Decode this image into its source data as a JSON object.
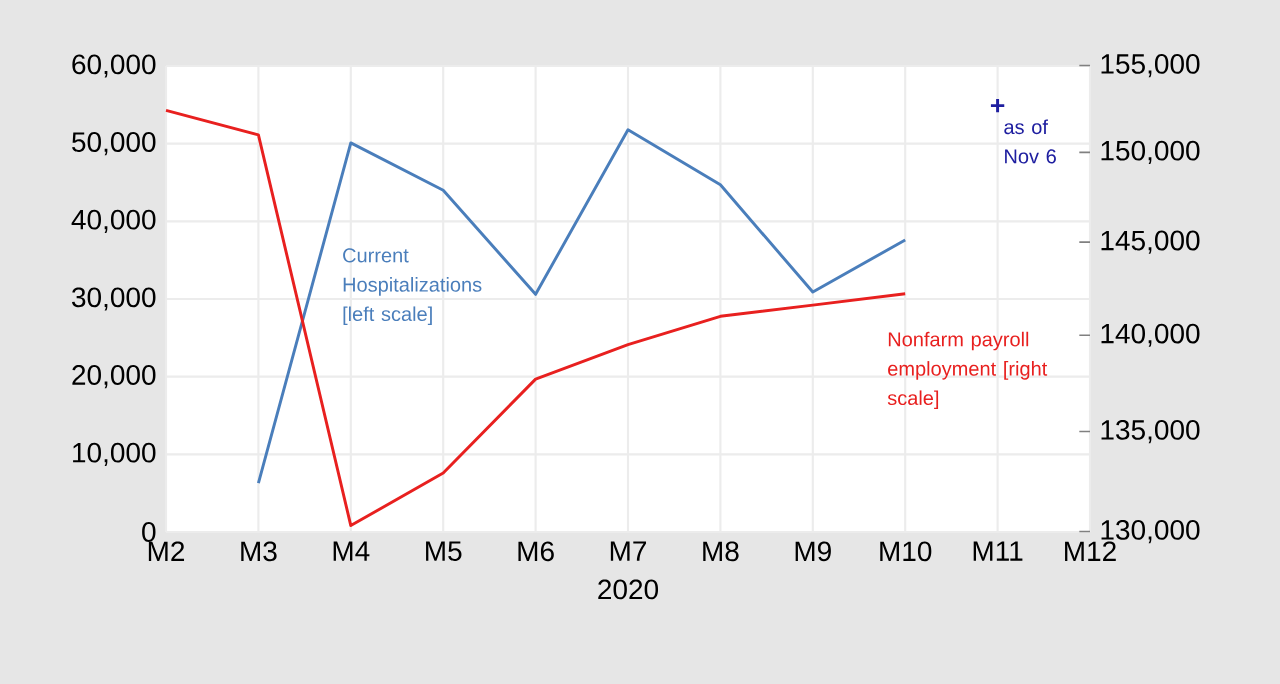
{
  "chart_data": {
    "type": "line",
    "xlabel": "2020",
    "categories": [
      "M2",
      "M3",
      "M4",
      "M5",
      "M6",
      "M7",
      "M8",
      "M9",
      "M10",
      "M11",
      "M12"
    ],
    "series": [
      {
        "name": "Current Hospitalizations [left scale]",
        "color": "#4a7ebb",
        "values": [
          null,
          6300,
          50100,
          44000,
          30600,
          51800,
          44700,
          30900,
          37600,
          null,
          null
        ]
      },
      {
        "name": "Nonfarm payroll employment [right scale]",
        "color": "#e8201f",
        "axis": "y2",
        "values": [
          152400,
          151000,
          130300,
          132900,
          137700,
          139500,
          141000,
          141600,
          142200,
          null,
          null
        ]
      },
      {
        "type": "scatter",
        "marker": "cross",
        "color": "#1f1fa0",
        "x": [
          "M11"
        ],
        "values": [
          54900
        ]
      }
    ],
    "ylim": [
      0,
      60000
    ],
    "yticks": [
      {
        "value": 0,
        "label": "0"
      },
      {
        "value": 10000,
        "label": "10,000"
      },
      {
        "value": 20000,
        "label": "20,000"
      },
      {
        "value": 30000,
        "label": "30,000"
      },
      {
        "value": 40000,
        "label": "40,000"
      },
      {
        "value": 50000,
        "label": "50,000"
      },
      {
        "value": 60000,
        "label": "60,000"
      }
    ],
    "y2lim": [
      130000,
      155000
    ],
    "y2ticks": [
      {
        "value": 130000,
        "label": "130,000"
      },
      {
        "value": 135000,
        "label": "135,000"
      },
      {
        "value": 140000,
        "label": "140,000"
      },
      {
        "value": 145000,
        "label": "145,000"
      },
      {
        "value": 150000,
        "label": "150,000"
      },
      {
        "value": 155000,
        "label": "155,000"
      }
    ],
    "log": "y2",
    "grid": true,
    "annotations": [
      {
        "text": "as of Nov 6",
        "x": "M11",
        "y": 54900
      }
    ]
  }
}
